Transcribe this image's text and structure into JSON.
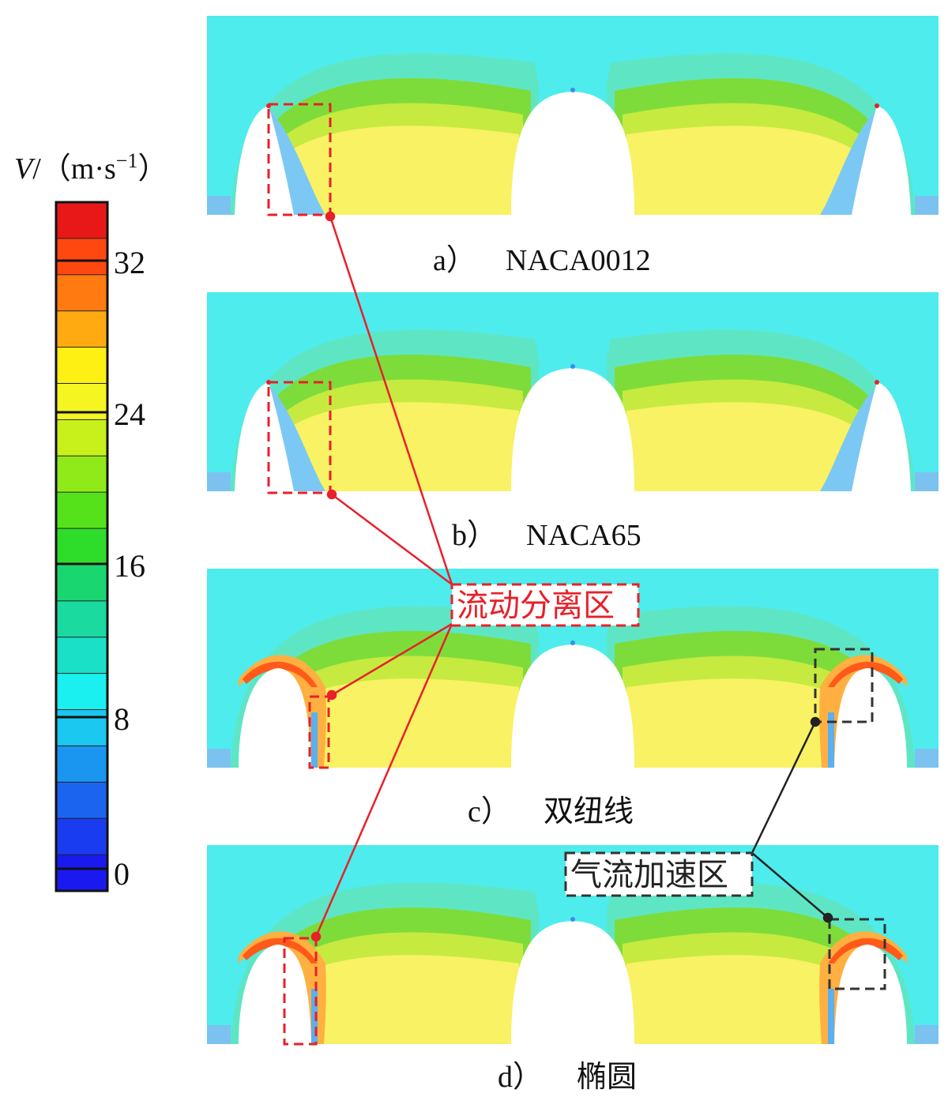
{
  "colorbar": {
    "symbol": "V",
    "unit": "/（m·s",
    "unit_exp": "−1",
    "unit_close": "）",
    "ticks": [
      "32",
      "24",
      "16",
      "8",
      "0"
    ],
    "colors": [
      "#e81818",
      "#ff4810",
      "#ff7a10",
      "#ffaa10",
      "#fff014",
      "#f5f522",
      "#c8f01a",
      "#90ea1a",
      "#56e21a",
      "#2edc2a",
      "#1ad670",
      "#1adaa0",
      "#1ae0c8",
      "#1af0f0",
      "#1ac8f0",
      "#1a96f0",
      "#1a64f0",
      "#1a3cf0",
      "#1a1af0"
    ]
  },
  "panels": [
    {
      "label": "a）",
      "name": "NACA0012",
      "variant": "blue"
    },
    {
      "label": "b）",
      "name": "NACA65",
      "variant": "blue"
    },
    {
      "label": "c）",
      "name": "双纽线",
      "variant": "red"
    },
    {
      "label": "d）",
      "name": "椭圆",
      "variant": "red"
    }
  ],
  "annotations": {
    "separation": "流动分离区",
    "acceleration": "气流加速区"
  },
  "colors": {
    "bg_flow": "#4eeced",
    "core": "#f8f264",
    "green": "#7edc3a",
    "red_annot": "#e8202a",
    "dark_annot": "#333333"
  }
}
